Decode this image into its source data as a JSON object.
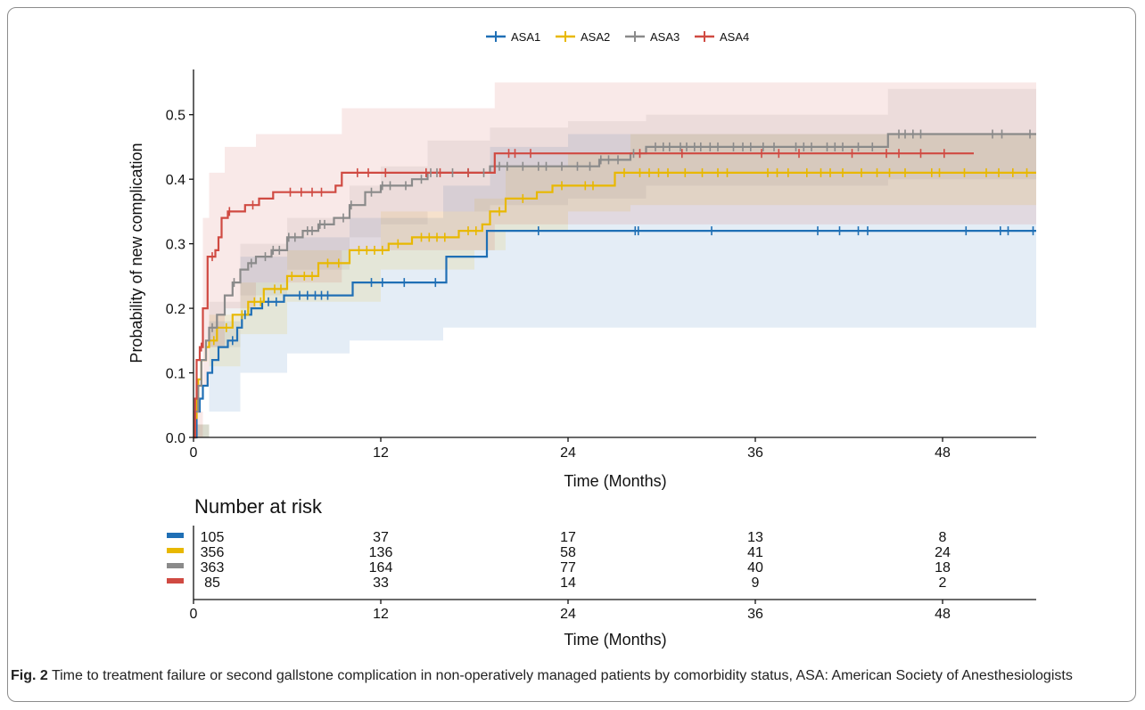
{
  "chart_data": {
    "type": "line",
    "subtype": "kaplan-meier-cumulative-incidence",
    "title": "",
    "xlabel": "Time (Months)",
    "ylabel": "Probability of new complication",
    "xlim": [
      0,
      54
    ],
    "ylim": [
      0,
      0.57
    ],
    "x_ticks": [
      0,
      12,
      24,
      36,
      48
    ],
    "y_ticks": [
      0.0,
      0.1,
      0.2,
      0.3,
      0.4,
      0.5
    ],
    "y_tick_labels": [
      "0.0",
      "0.1",
      "0.2",
      "0.3",
      "0.4",
      "0.5"
    ],
    "grid": false,
    "legend_position": "top",
    "series": [
      {
        "name": "ASA1",
        "color": "#1f6fb5",
        "steps": [
          [
            0,
            0
          ],
          [
            0.2,
            0.04
          ],
          [
            0.4,
            0.06
          ],
          [
            0.6,
            0.08
          ],
          [
            0.9,
            0.1
          ],
          [
            1.2,
            0.12
          ],
          [
            1.6,
            0.14
          ],
          [
            2.2,
            0.15
          ],
          [
            2.8,
            0.17
          ],
          [
            3.1,
            0.19
          ],
          [
            3.7,
            0.2
          ],
          [
            4.4,
            0.21
          ],
          [
            5.8,
            0.22
          ],
          [
            10.2,
            0.24
          ],
          [
            16.2,
            0.28
          ],
          [
            18.8,
            0.32
          ],
          [
            54,
            0.32
          ]
        ],
        "censors": [
          2.5,
          3.3,
          4.8,
          5.3,
          6.8,
          7.3,
          7.8,
          8.2,
          8.6,
          11.4,
          12.1,
          13.5,
          15.5,
          22.1,
          28.3,
          28.5,
          33.2,
          40.0,
          41.4,
          42.6,
          43.2,
          49.5,
          51.7,
          52.2,
          53.8
        ],
        "ci_steps": [
          [
            0,
            0,
            0.02
          ],
          [
            1,
            0.04,
            0.18
          ],
          [
            3,
            0.1,
            0.28
          ],
          [
            6,
            0.13,
            0.31
          ],
          [
            10,
            0.15,
            0.34
          ],
          [
            16,
            0.17,
            0.39
          ],
          [
            19,
            0.17,
            0.45
          ],
          [
            24,
            0.17,
            0.47
          ],
          [
            54,
            0.17,
            0.47
          ]
        ]
      },
      {
        "name": "ASA2",
        "color": "#e8b800",
        "steps": [
          [
            0,
            0
          ],
          [
            0.1,
            0.03
          ],
          [
            0.2,
            0.06
          ],
          [
            0.3,
            0.09
          ],
          [
            0.5,
            0.12
          ],
          [
            0.8,
            0.14
          ],
          [
            1,
            0.15
          ],
          [
            1.5,
            0.17
          ],
          [
            2.5,
            0.19
          ],
          [
            3.5,
            0.21
          ],
          [
            4.5,
            0.23
          ],
          [
            6,
            0.25
          ],
          [
            8,
            0.27
          ],
          [
            10,
            0.29
          ],
          [
            12.5,
            0.3
          ],
          [
            14,
            0.31
          ],
          [
            17,
            0.32
          ],
          [
            18.5,
            0.33
          ],
          [
            19,
            0.35
          ],
          [
            20,
            0.37
          ],
          [
            22,
            0.38
          ],
          [
            23,
            0.39
          ],
          [
            27,
            0.41
          ],
          [
            54,
            0.41
          ]
        ],
        "censors": [
          1.3,
          2.1,
          3.1,
          3.9,
          4.3,
          5.2,
          5.6,
          6.3,
          7.1,
          7.6,
          8.6,
          9.3,
          10.6,
          11.1,
          11.6,
          12.1,
          13.1,
          14.6,
          15.1,
          15.6,
          16.1,
          17.6,
          18.1,
          19.6,
          21.1,
          23.6,
          25.1,
          25.6,
          27.6,
          28.6,
          29.2,
          29.8,
          30.4,
          31.5,
          32.6,
          33.6,
          34.2,
          36.8,
          37.4,
          38.1,
          39.3,
          40.2,
          40.8,
          41.6,
          42.8,
          43.8,
          44.6,
          45.6,
          47.3,
          47.8,
          49.4,
          50.8,
          51.6,
          52.5,
          53.4
        ],
        "ci_steps": [
          [
            0,
            0,
            0.02
          ],
          [
            1,
            0.11,
            0.19
          ],
          [
            3,
            0.16,
            0.24
          ],
          [
            6,
            0.21,
            0.29
          ],
          [
            12,
            0.26,
            0.35
          ],
          [
            18,
            0.29,
            0.37
          ],
          [
            20,
            0.32,
            0.42
          ],
          [
            24,
            0.35,
            0.44
          ],
          [
            28,
            0.36,
            0.47
          ],
          [
            54,
            0.36,
            0.47
          ]
        ]
      },
      {
        "name": "ASA3",
        "color": "#8a8a8a",
        "steps": [
          [
            0,
            0
          ],
          [
            0.1,
            0.04
          ],
          [
            0.3,
            0.08
          ],
          [
            0.5,
            0.12
          ],
          [
            0.8,
            0.15
          ],
          [
            1,
            0.17
          ],
          [
            1.5,
            0.19
          ],
          [
            2,
            0.22
          ],
          [
            2.5,
            0.24
          ],
          [
            3,
            0.26
          ],
          [
            3.5,
            0.27
          ],
          [
            4,
            0.28
          ],
          [
            5,
            0.29
          ],
          [
            6,
            0.31
          ],
          [
            7,
            0.32
          ],
          [
            8,
            0.33
          ],
          [
            9,
            0.34
          ],
          [
            10,
            0.36
          ],
          [
            11,
            0.38
          ],
          [
            12,
            0.39
          ],
          [
            14,
            0.4
          ],
          [
            15,
            0.41
          ],
          [
            19,
            0.42
          ],
          [
            26,
            0.43
          ],
          [
            28,
            0.44
          ],
          [
            29,
            0.45
          ],
          [
            44.5,
            0.47
          ],
          [
            54,
            0.47
          ]
        ],
        "censors": [
          1.2,
          2.6,
          3.7,
          4.6,
          5.1,
          5.5,
          6.1,
          6.5,
          7.3,
          7.6,
          8.1,
          8.4,
          9.6,
          10.1,
          11.4,
          12.1,
          12.6,
          13.6,
          14.6,
          15.2,
          15.6,
          16.6,
          17.6,
          18.6,
          19.6,
          20.1,
          21.1,
          22.1,
          22.6,
          23.6,
          24.6,
          25.4,
          26.1,
          26.6,
          27.2,
          28.2,
          29.6,
          30.1,
          30.5,
          31.2,
          31.6,
          32.1,
          32.5,
          33.1,
          33.6,
          34.6,
          35.2,
          35.7,
          36.5,
          37.2,
          38.6,
          39.1,
          39.6,
          40.6,
          41.1,
          41.6,
          42.6,
          43.5,
          45.2,
          45.6,
          46.1,
          46.6,
          51.2,
          51.8,
          53.6
        ],
        "ci_steps": [
          [
            0,
            0,
            0.02
          ],
          [
            1,
            0.14,
            0.21
          ],
          [
            3,
            0.22,
            0.3
          ],
          [
            6,
            0.26,
            0.34
          ],
          [
            10,
            0.31,
            0.39
          ],
          [
            12,
            0.33,
            0.42
          ],
          [
            15,
            0.35,
            0.46
          ],
          [
            19,
            0.36,
            0.48
          ],
          [
            24,
            0.37,
            0.49
          ],
          [
            29,
            0.39,
            0.5
          ],
          [
            44.5,
            0.4,
            0.54
          ],
          [
            54,
            0.4,
            0.54
          ]
        ]
      },
      {
        "name": "ASA4",
        "color": "#d04a42",
        "steps": [
          [
            0,
            0
          ],
          [
            0.1,
            0.06
          ],
          [
            0.2,
            0.12
          ],
          [
            0.4,
            0.14
          ],
          [
            0.6,
            0.2
          ],
          [
            0.9,
            0.28
          ],
          [
            1.4,
            0.29
          ],
          [
            1.6,
            0.31
          ],
          [
            1.8,
            0.34
          ],
          [
            2.2,
            0.35
          ],
          [
            3.3,
            0.36
          ],
          [
            4.2,
            0.37
          ],
          [
            5.1,
            0.38
          ],
          [
            9.1,
            0.39
          ],
          [
            9.5,
            0.41
          ],
          [
            17,
            0.41
          ],
          [
            19.3,
            0.44
          ],
          [
            50,
            0.44
          ]
        ],
        "censors": [
          0.5,
          1.2,
          2.3,
          3.8,
          6.2,
          6.9,
          7.6,
          8.2,
          10.5,
          11.2,
          12.3,
          14.9,
          15.8,
          17.6,
          20.2,
          20.6,
          21.6,
          28.6,
          31.3,
          36.4,
          37.5,
          38.8,
          42.2,
          44.4,
          45.2,
          46.6,
          48.1
        ],
        "ci_steps": [
          [
            0,
            0,
            0.04
          ],
          [
            0.6,
            0.08,
            0.34
          ],
          [
            1,
            0.14,
            0.41
          ],
          [
            2,
            0.2,
            0.45
          ],
          [
            4,
            0.24,
            0.47
          ],
          [
            9.5,
            0.29,
            0.51
          ],
          [
            19.3,
            0.33,
            0.55
          ],
          [
            54,
            0.33,
            0.55
          ]
        ]
      }
    ],
    "risk_table": {
      "title": "Number at risk",
      "xlabel": "Time (Months)",
      "times": [
        0,
        12,
        24,
        36,
        48
      ],
      "rows": [
        {
          "series": "ASA1",
          "values": [
            "105",
            "37",
            "17",
            "13",
            "8"
          ]
        },
        {
          "series": "ASA2",
          "values": [
            "356",
            "136",
            "58",
            "41",
            "24"
          ]
        },
        {
          "series": "ASA3",
          "values": [
            "363",
            "164",
            "77",
            "40",
            "18"
          ]
        },
        {
          "series": "ASA4",
          "values": [
            "85",
            "33",
            "14",
            "9",
            "2"
          ]
        }
      ]
    }
  },
  "caption": {
    "label": "Fig. 2",
    "text": "Time to treatment failure or second gallstone complication in non-operatively managed patients by comorbidity status, ASA: American Society of Anesthesiologists"
  }
}
